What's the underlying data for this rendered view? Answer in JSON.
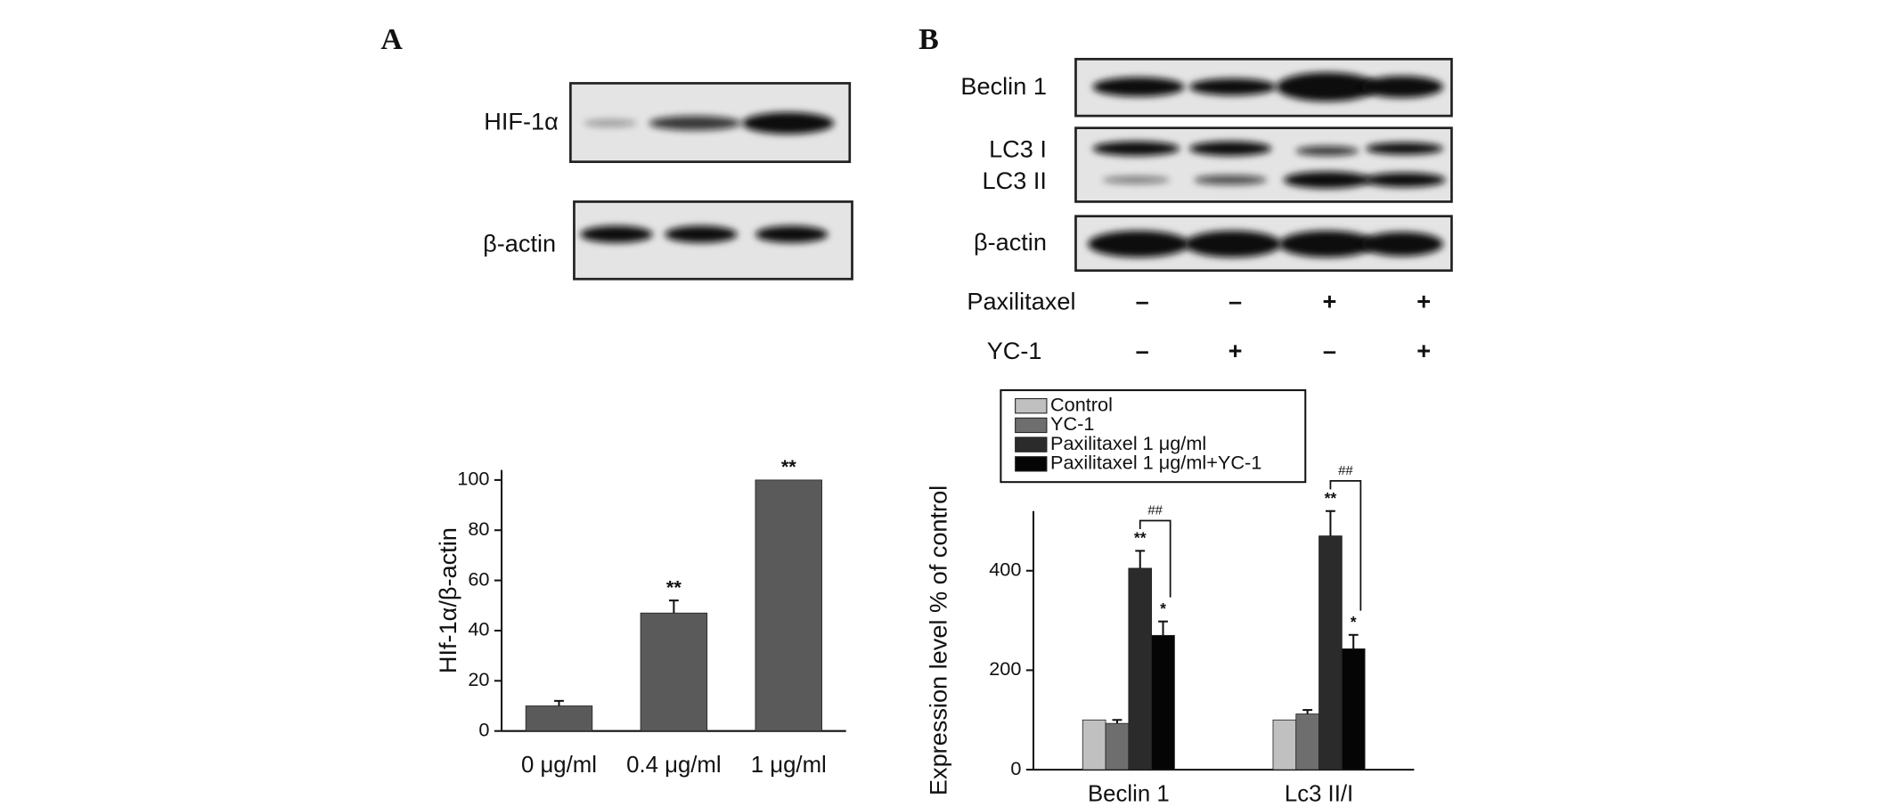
{
  "panel_labels": [
    "A",
    "B"
  ],
  "blot_a": {
    "labels": [
      "HIF-1α",
      "β-actin"
    ]
  },
  "blot_b": {
    "labels": [
      "Beclin 1",
      "LC3 I",
      "LC3 II",
      "β-actin"
    ],
    "treatments": [
      {
        "name": "Paxilitaxel",
        "signs": [
          "–",
          "–",
          "+",
          "+"
        ]
      },
      {
        "name": "YC-1",
        "signs": [
          "–",
          "+",
          "–",
          "+"
        ]
      }
    ]
  },
  "chart_data": [
    {
      "type": "bar",
      "ylabel": "HIf-1α/β-actin",
      "categories": [
        "0 μg/ml",
        "0.4 μg/ml",
        "1 μg/ml"
      ],
      "values": [
        10,
        47,
        100
      ],
      "errors": [
        2,
        5,
        0
      ],
      "annotations": [
        null,
        "**",
        "**"
      ],
      "color": "#5a5a5a",
      "ylim": [
        0,
        104
      ],
      "yticks": [
        0,
        20,
        40,
        60,
        80,
        100
      ]
    },
    {
      "type": "bar",
      "ylabel": "Expression level % of control",
      "categories": [
        "Beclin 1",
        "Lc3 II/I"
      ],
      "series": [
        {
          "name": "Control",
          "color": "#c0c0c0",
          "values": [
            100,
            100
          ],
          "errors": [
            0,
            0
          ],
          "annotations": [
            null,
            null
          ]
        },
        {
          "name": "YC-1",
          "color": "#6e6e6e",
          "values": [
            93,
            112
          ],
          "errors": [
            7,
            8
          ],
          "annotations": [
            null,
            null
          ]
        },
        {
          "name": "Paxilitaxel 1 μg/ml",
          "color": "#2b2b2b",
          "values": [
            405,
            470
          ],
          "errors": [
            35,
            50
          ],
          "annotations": [
            "**",
            "**"
          ]
        },
        {
          "name": "Paxilitaxel 1 μg/ml+YC-1",
          "color": "#050505",
          "values": [
            270,
            243
          ],
          "errors": [
            28,
            28
          ],
          "annotations": [
            "*",
            "*"
          ]
        }
      ],
      "bracket_labels": [
        "##",
        "##"
      ],
      "ylim": [
        0,
        520
      ],
      "yticks": [
        0,
        200,
        400
      ]
    }
  ]
}
